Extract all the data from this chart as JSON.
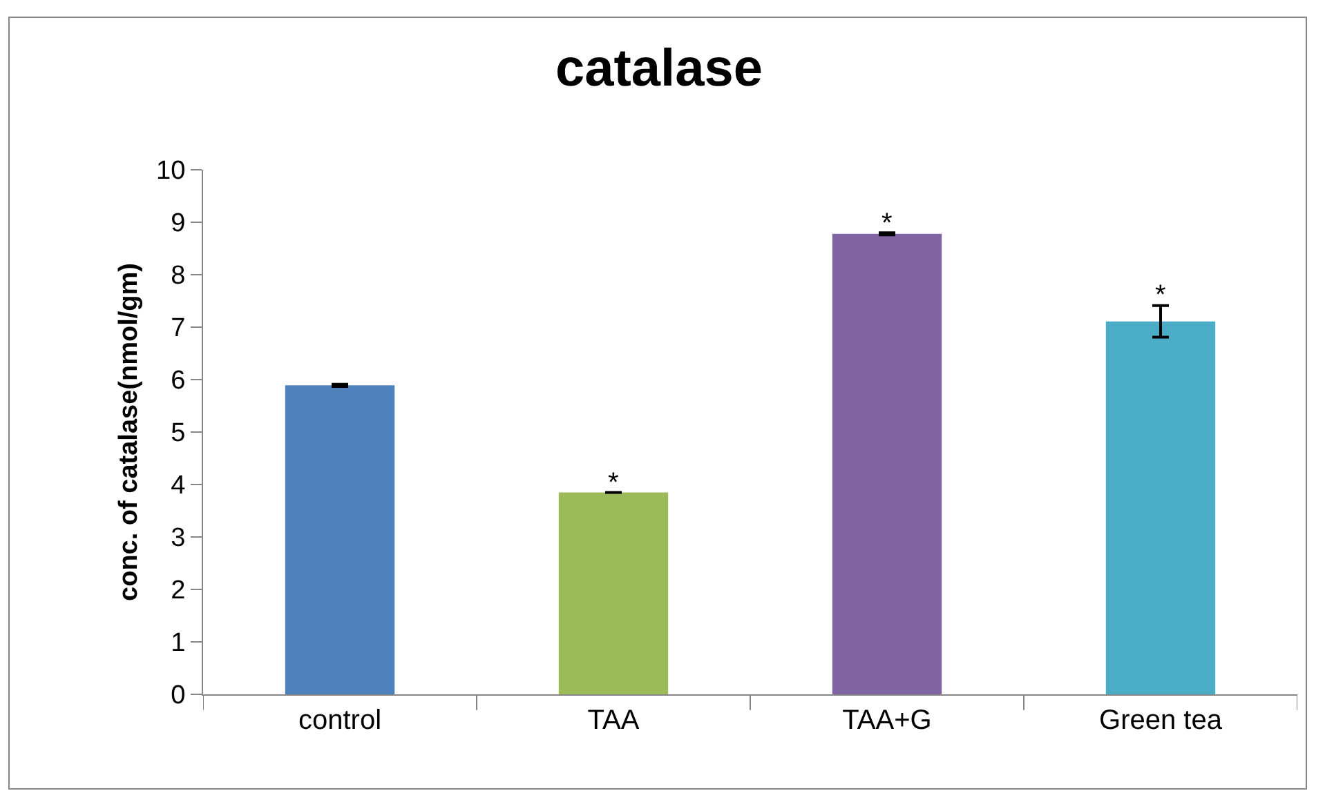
{
  "chart_data": {
    "type": "bar",
    "title": "catalase",
    "ylabel": "conc. of catalase(nmol/gm)",
    "categories": [
      "control",
      "TAA",
      "TAA+G",
      "Green tea"
    ],
    "values": [
      5.89,
      3.85,
      8.78,
      7.11
    ],
    "colors": [
      "#4f81bd",
      "#9bbb59",
      "#8064a2",
      "#4bacc6"
    ],
    "errors": [
      0.02,
      null,
      0.02,
      0.3
    ],
    "ylim": [
      0,
      10
    ],
    "yticks": [
      0,
      1,
      2,
      3,
      4,
      5,
      6,
      7,
      8,
      9,
      10
    ],
    "grid": false,
    "annotations": [
      {
        "text": "*",
        "x": "TAA",
        "y": 3.85
      },
      {
        "text": "*",
        "x": "TAA+G",
        "y": 8.78
      },
      {
        "text": "*",
        "x": "Green tea",
        "y": 7.11
      }
    ]
  }
}
